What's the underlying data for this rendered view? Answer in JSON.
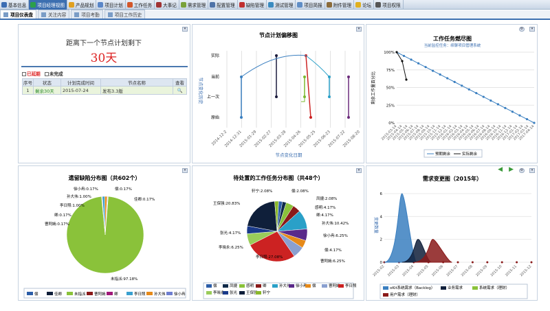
{
  "topnav": [
    {
      "label": "基本信息",
      "color": "#3b6db3",
      "active": false
    },
    {
      "label": "项目经理视图",
      "color": "#2c9f4b",
      "active": true
    },
    {
      "label": "产品规划",
      "color": "#e0a020",
      "active": false
    },
    {
      "label": "项目计划",
      "color": "#5a86c8",
      "active": false
    },
    {
      "label": "工作任务",
      "color": "#d2572b",
      "active": false
    },
    {
      "label": "大事记",
      "color": "#a03333",
      "active": false
    },
    {
      "label": "需求管理",
      "color": "#7aa23a",
      "active": false
    },
    {
      "label": "配置管理",
      "color": "#4f73a8",
      "active": false
    },
    {
      "label": "缺陷管理",
      "color": "#c03030",
      "active": false
    },
    {
      "label": "测试管理",
      "color": "#3a8bc0",
      "active": false
    },
    {
      "label": "项目简报",
      "color": "#608ec6",
      "active": false
    },
    {
      "label": "附件管理",
      "color": "#8b6b3a",
      "active": false
    },
    {
      "label": "论坛",
      "color": "#e0b020",
      "active": false
    },
    {
      "label": "项目权限",
      "color": "#555555",
      "active": false
    }
  ],
  "subnav": {
    "tabs": [
      "项目仪表盘",
      "关注内容",
      "项目考勤",
      "项目工作历史"
    ]
  },
  "countdown": {
    "title": "距离下一个节点计划剩下",
    "value": "30天",
    "legend_overdue": "已延期",
    "legend_incomplete": "未完成",
    "headers": [
      "序号",
      "状态",
      "计划完成时间",
      "节点名称",
      "查看"
    ],
    "row": {
      "index": "1",
      "status": "剩余30天",
      "date": "2015-07-24",
      "name": "发布3.3版"
    }
  },
  "offset_chart": {
    "title": "节点计划偏移图",
    "ylabel": "节点变化历史",
    "xlabel": "节点变化日期",
    "yticks": [
      "实际",
      "当前",
      "上一次",
      "原始"
    ],
    "xticks": [
      "2014-12-2",
      "2014-12-31",
      "2015-01-29",
      "2015-02-27",
      "2015-03-28",
      "2015-04-26",
      "2015-05-25",
      "2015-06-23",
      "2015-07-22",
      "2015-08-20"
    ]
  },
  "burndown": {
    "title": "工作任务燃尽图",
    "subtitle": "当前监控任务：续聊项目管理系统",
    "ylabel": "剩余工作量百分比",
    "yticks": [
      "100%",
      "75%",
      "50%",
      "25%",
      "0%"
    ],
    "xticks": [
      "2015-03-14",
      "2015-04-14",
      "2015-05-14",
      "2015-06-14",
      "2015-07-14",
      "2015-08-14",
      "2015-09-14",
      "2015-10-14",
      "2015-11-14",
      "2015-12-14",
      "2016-01-14",
      "2016-02-14",
      "2016-03-14",
      "2016-04-14",
      "2016-05-14",
      "2016-06-14",
      "2016-07-14",
      "2016-08-14",
      "2016-09-14",
      "2016-10-14",
      "2016-11-14",
      "2016-12-14",
      "2017-01-14",
      "2017-02-14",
      "2017-03-14",
      "2017-04-14"
    ],
    "legend_plan": "预期剩余",
    "legend_actual": "实际剩余"
  },
  "defect_pie": {
    "title": "遗留缺陷分布图（共602个）",
    "labels": [
      {
        "text": "徐小冉:0.17%"
      },
      {
        "text": "偿:0.17%"
      },
      {
        "text": "孙大伟:1.00%"
      },
      {
        "text": "佳卿:0.17%"
      },
      {
        "text": "李日照:1.00%"
      },
      {
        "text": "卿:0.17%"
      },
      {
        "text": "曹阿嫣:0.17%"
      },
      {
        "text": "未指派:97.18%"
      }
    ],
    "legend": [
      "偿",
      "佳卿",
      "未指派",
      "曹阿嫣",
      "卿",
      "李日照",
      "孙大伟",
      "徐小冉"
    ]
  },
  "task_pie": {
    "title": "待处置的工作任务分布图（共48个）",
    "labels": [
      {
        "text": "轩宁:2.08%"
      },
      {
        "text": "偿:2.08%"
      },
      {
        "text": "王保强:20.83%"
      },
      {
        "text": "凤捷:2.08%"
      },
      {
        "text": "感明:4.17%"
      },
      {
        "text": "卿:4.17%"
      },
      {
        "text": "孙大伟:10.42%"
      },
      {
        "text": "张光:4.17%"
      },
      {
        "text": "徐小冉:6.25%"
      },
      {
        "text": "李晓永:6.25%"
      },
      {
        "text": "偿:4.17%"
      },
      {
        "text": "曹阿嫣:6.25%"
      },
      {
        "text": "李日照:27.08%"
      }
    ],
    "legend": [
      "偿",
      "凤捷",
      "感明",
      "卿",
      "孙大伟",
      "徐小冉",
      "偿",
      "曹阿嫣",
      "李日照",
      "李晓永",
      "张光",
      "王保强",
      "轩宁"
    ]
  },
  "demand_chart": {
    "title": "需求变更图（2015年）",
    "ylabel": "变更数量",
    "yticks": [
      "0",
      "2",
      "4",
      "6"
    ],
    "xticks": [
      "2015-02",
      "2015-03",
      "2015-04",
      "2015-05",
      "2015-06",
      "2015-07",
      "2015-08",
      "2015-09",
      "2015-10",
      "2015-11",
      "2015-12"
    ],
    "legend": [
      "oKit系统需求（Backlog）",
      "业务需求",
      "系统需求（理财）",
      "用户需求（理财）"
    ]
  },
  "colors": {
    "accent": "#3c6fb0",
    "danger": "#dd2222"
  }
}
